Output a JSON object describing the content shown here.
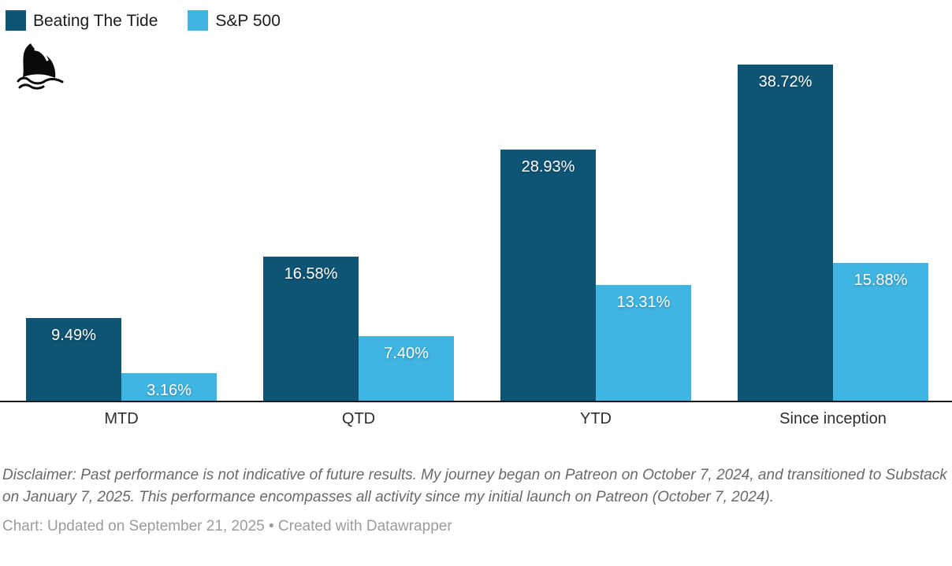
{
  "legend": {
    "items": [
      {
        "label": "Beating The Tide",
        "color": "#0e5474"
      },
      {
        "label": "S&P 500",
        "color": "#41b5e2"
      }
    ]
  },
  "icons": {
    "logo": "shark-fin-icon"
  },
  "chart_data": {
    "type": "bar",
    "title": "",
    "categories": [
      "MTD",
      "QTD",
      "YTD",
      "Since inception"
    ],
    "series": [
      {
        "name": "Beating The Tide",
        "color": "#0e5474",
        "values": [
          9.49,
          16.58,
          28.93,
          38.72
        ],
        "labels": [
          "9.49%",
          "16.58%",
          "28.93%",
          "38.72%"
        ]
      },
      {
        "name": "S&P 500",
        "color": "#41b5e2",
        "values": [
          3.16,
          7.4,
          13.31,
          15.88
        ],
        "labels": [
          "3.16%",
          "7.40%",
          "13.31%",
          "15.88%"
        ]
      }
    ],
    "value_suffix": "%",
    "ylim": [
      0,
      38.72
    ],
    "grid": false,
    "axis_ticks_visible": false,
    "legend_position": "top-left",
    "label_placement": "inside-top",
    "xlabel": "",
    "ylabel": ""
  },
  "footer": {
    "disclaimer": "Disclaimer: Past performance is not indicative of future results. My journey began on Patreon on October 7, 2024, and transitioned to Substack on January 7, 2025. This performance encompasses all activity since my initial launch on Patreon (October 7, 2024).",
    "credit": "Chart: Updated on September 21, 2025 • Created with Datawrapper"
  }
}
